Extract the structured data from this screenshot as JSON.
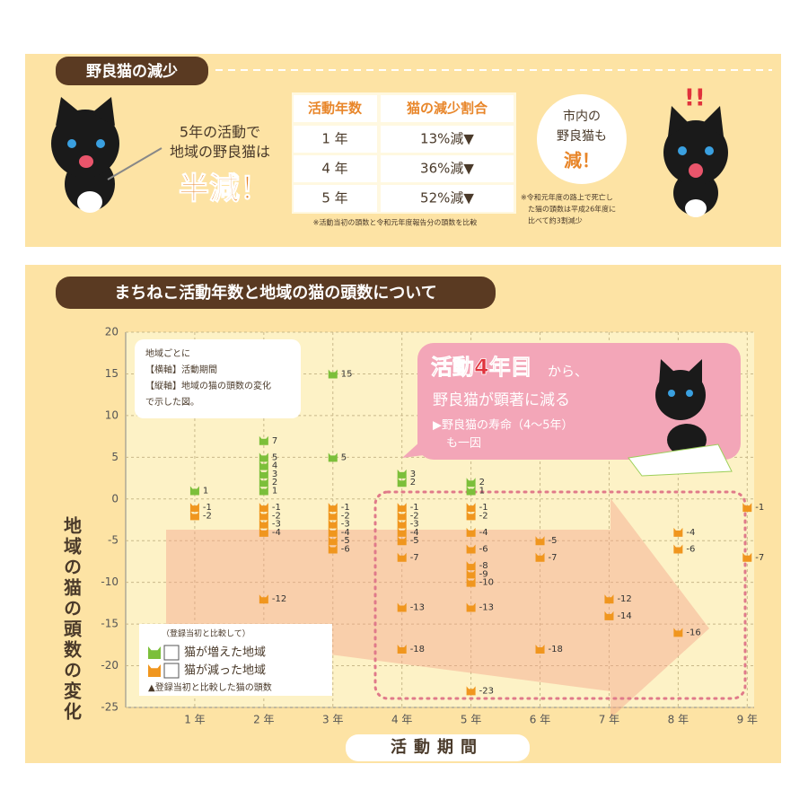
{
  "summary": {
    "title": "野良猫の減少",
    "lead": [
      "5年の活動で",
      "地域の野良猫は"
    ],
    "headline": "半減！",
    "table": {
      "header": [
        "活動年数",
        "猫の減少割合"
      ],
      "rows": [
        [
          "1 年",
          "13%減▼"
        ],
        [
          "4 年",
          "36%減▼"
        ],
        [
          "5 年",
          "52%減▼"
        ]
      ]
    },
    "table_note": "※活動当初の頭数と令和元年度報告分の頭数を比較",
    "bubble": [
      "市内の",
      "野良猫も",
      "減！"
    ],
    "side_note": [
      "※令和元年度の路上で死亡し",
      "た猫の頭数は平成26年度に",
      "比べて約3割減少"
    ]
  },
  "chart_data": {
    "type": "scatter",
    "title": "まちねこ活動年数と地域の猫の頭数について",
    "xlabel": "活動期間",
    "ylabel": "地域の猫の頭数の変化",
    "note": [
      "地域ごとに",
      "【横軸】活動期間",
      "【縦軸】地域の猫の頭数の変化",
      "で示した図。"
    ],
    "callout": {
      "headline": "活動4年目",
      "suffix": "から、",
      "line": "野良猫が顕著に減る",
      "sub": [
        "▶野良猫の寿命（4～5年）",
        "も一因"
      ]
    },
    "legend_title": "（登録当初と比較して）",
    "legend_note": "▲登録当初と比較した猫の頭数",
    "xlim": [
      0,
      9.1
    ],
    "ylim": [
      -25,
      20
    ],
    "xticks": [
      {
        "value": 1,
        "label": "1 年"
      },
      {
        "value": 2,
        "label": "2 年"
      },
      {
        "value": 3,
        "label": "3 年"
      },
      {
        "value": 4,
        "label": "4 年"
      },
      {
        "value": 5,
        "label": "5 年"
      },
      {
        "value": 6,
        "label": "6 年"
      },
      {
        "value": 7,
        "label": "7 年"
      },
      {
        "value": 8,
        "label": "8 年"
      },
      {
        "value": 9,
        "label": "9 年"
      }
    ],
    "yticks": [
      -25,
      -20,
      -15,
      -10,
      -5,
      0,
      5,
      10,
      15,
      20
    ],
    "grid": true,
    "series": [
      {
        "name": "猫が増えた地域",
        "color": "#7cbf3a",
        "x": [
          1,
          2,
          2,
          2,
          2,
          2,
          2,
          3,
          3,
          4,
          4,
          5,
          5
        ],
        "values": [
          1,
          7,
          5,
          4,
          3,
          2,
          1,
          15,
          5,
          3,
          2,
          2,
          1
        ]
      },
      {
        "name": "猫が減った地域",
        "color": "#f0961e",
        "x": [
          1,
          1,
          2,
          2,
          2,
          2,
          2,
          3,
          3,
          3,
          3,
          3,
          3,
          4,
          4,
          4,
          4,
          4,
          4,
          4,
          4,
          5,
          5,
          5,
          5,
          5,
          5,
          5,
          5,
          5,
          6,
          6,
          6,
          7,
          7,
          8,
          8,
          8,
          9,
          9
        ],
        "values": [
          -1,
          -2,
          -1,
          -2,
          -3,
          -4,
          -12,
          -1,
          -2,
          -3,
          -4,
          -5,
          -6,
          -1,
          -2,
          -3,
          -4,
          -5,
          -7,
          -13,
          -18,
          -1,
          -2,
          -4,
          -6,
          -8,
          -9,
          -10,
          -13,
          -23,
          -5,
          -7,
          -18,
          -12,
          -14,
          -4,
          -6,
          -16,
          -1,
          -7
        ]
      }
    ]
  }
}
